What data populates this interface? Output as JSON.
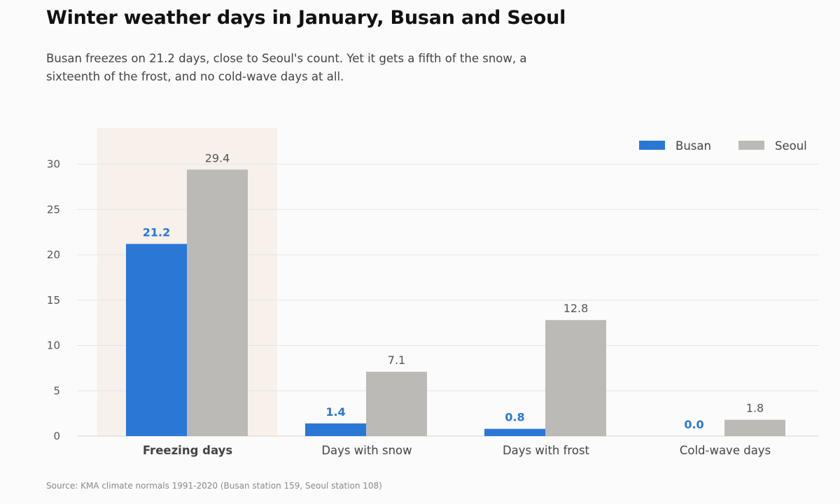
{
  "title": "Winter weather days in January, Busan and Seoul",
  "subtitle": "Busan freezes on 21.2 days, close to Seoul's count. Yet it gets a fifth of the snow, a sixteenth of the frost, and no cold-wave days at all.",
  "source": "Source: KMA climate normals 1991-2020 (Busan station 159, Seoul station 108)",
  "colors": {
    "busan": "#2a77d6",
    "seoul": "#bbbab6",
    "highlight_bg": "#f8f0ea",
    "highlight_text": "#e07a3c",
    "grid": "#e4e4e4"
  },
  "chart_data": {
    "type": "bar",
    "title": "Winter weather days in January, Busan and Seoul",
    "xlabel": "",
    "ylabel": "",
    "categories": [
      "Freezing days",
      "Days with snow",
      "Days with frost",
      "Cold-wave days"
    ],
    "highlighted_category": "Freezing days",
    "series": [
      {
        "name": "Busan",
        "values": [
          21.2,
          1.4,
          0.8,
          0.0
        ]
      },
      {
        "name": "Seoul",
        "values": [
          29.4,
          7.1,
          12.8,
          1.8
        ]
      }
    ],
    "value_labels": {
      "Busan": [
        "21.2",
        "1.4",
        "0.8",
        "0.0"
      ],
      "Seoul": [
        "29.4",
        "7.1",
        "12.8",
        "1.8"
      ]
    },
    "ylim": [
      0,
      33
    ],
    "yticks": [
      0,
      5,
      10,
      15,
      20,
      25,
      30
    ],
    "ytick_labels": [
      "0",
      "5",
      "10",
      "15",
      "20",
      "25",
      "30"
    ],
    "grid": true,
    "legend_position": "top-right"
  }
}
